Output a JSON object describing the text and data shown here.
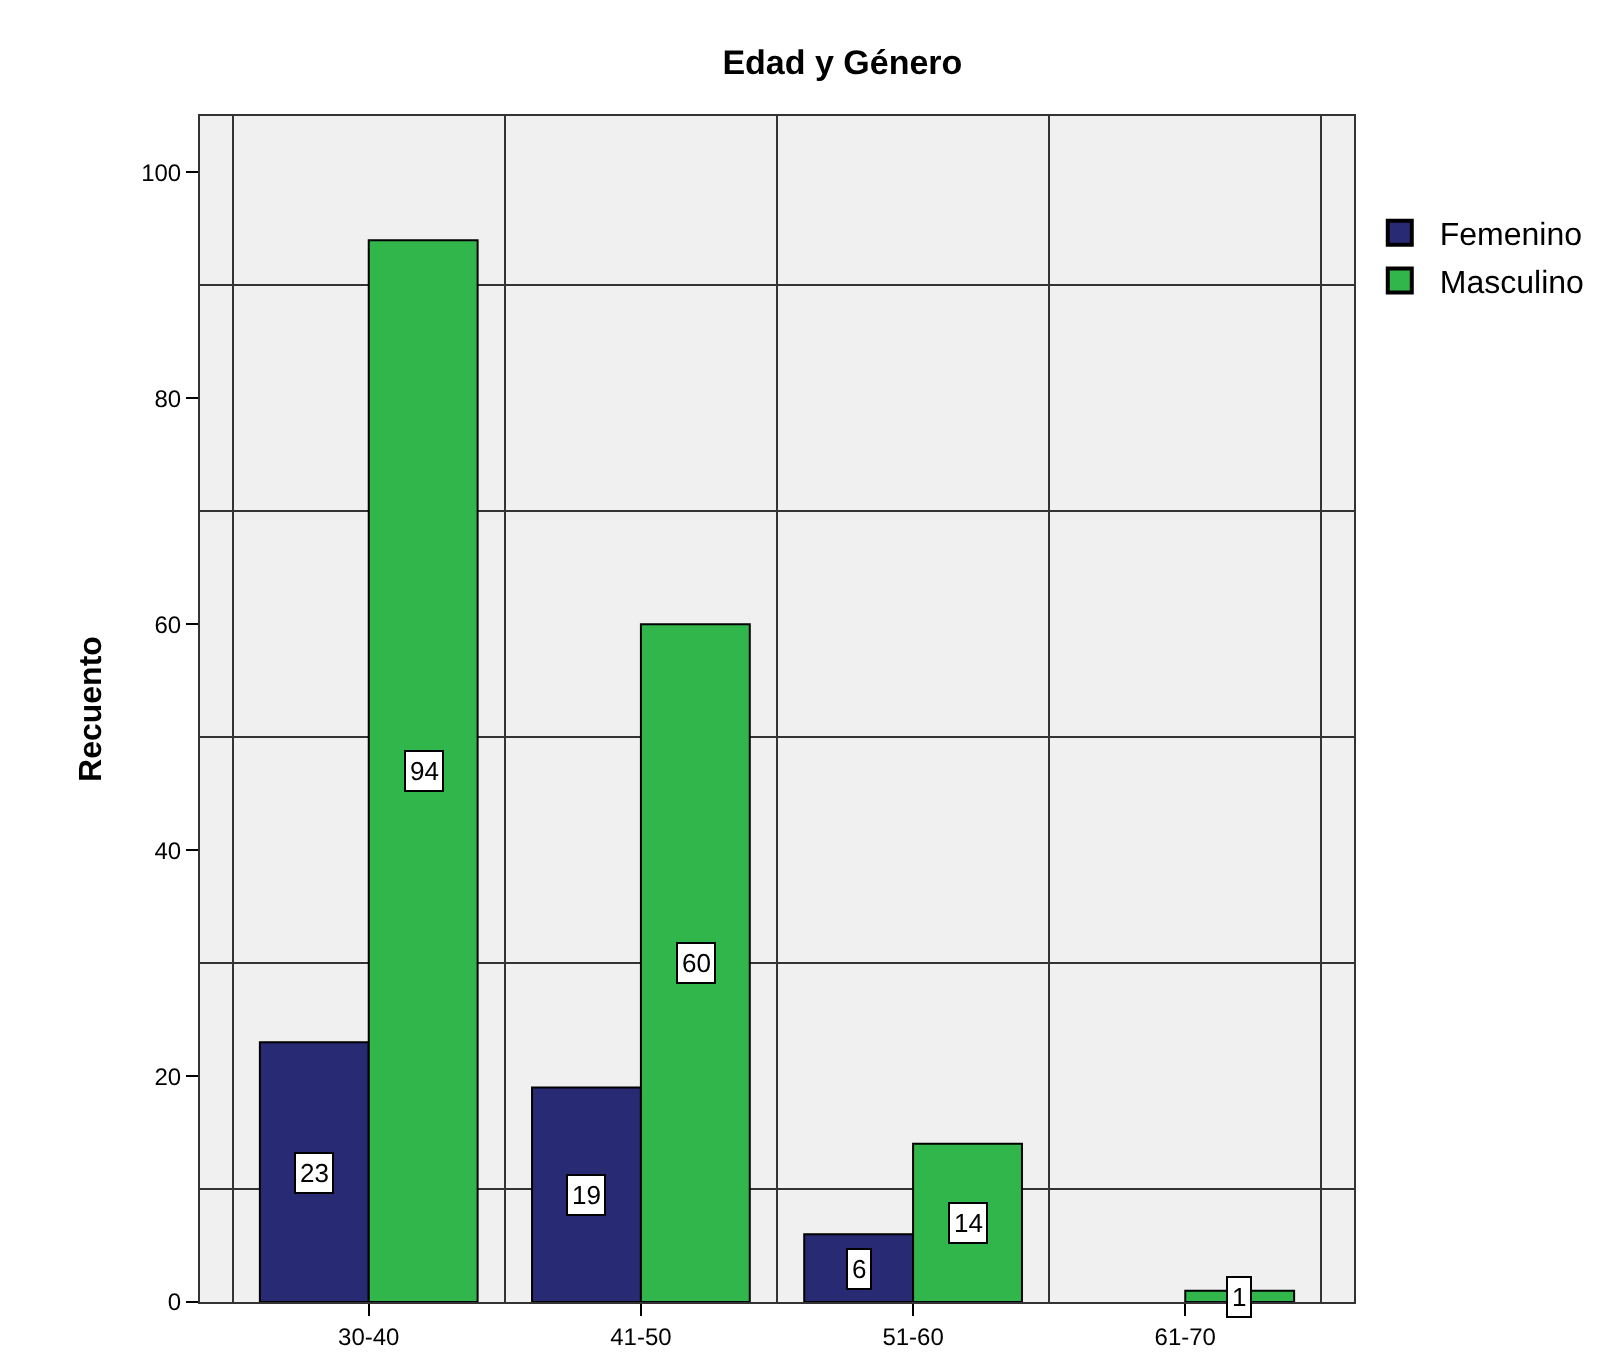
{
  "chart_data": {
    "type": "bar",
    "title": "Edad y Género",
    "ylabel": "Recuento",
    "categories": [
      "30-40",
      "41-50",
      "51-60",
      "61-70"
    ],
    "series": [
      {
        "name": "Femenino",
        "color": "#282a73",
        "values": [
          23,
          19,
          6,
          null
        ]
      },
      {
        "name": "Masculino",
        "color": "#31b64b",
        "values": [
          94,
          60,
          14,
          1
        ]
      }
    ],
    "ylim": [
      0,
      105
    ],
    "yticks": [
      0,
      {
        "value": 10,
        "label": null
      },
      20,
      {
        "value": 30,
        "label": null
      },
      40,
      {
        "value": 50,
        "label": null
      },
      60,
      {
        "value": 70,
        "label": null
      },
      80,
      {
        "value": 90,
        "label": null
      },
      100
    ],
    "grid": true,
    "legend": "top right",
    "data_labels": true
  }
}
